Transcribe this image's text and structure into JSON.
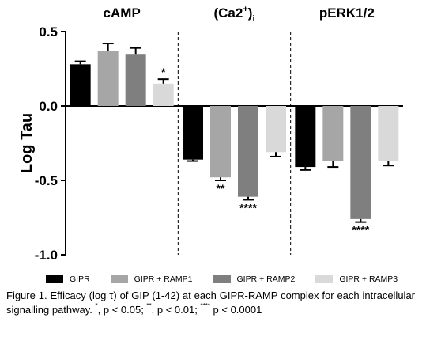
{
  "chart_data": {
    "type": "bar",
    "panels": [
      "cAMP",
      "(Ca2+)i",
      "pERK1/2"
    ],
    "series": [
      {
        "name": "GIPR",
        "color": "#000000",
        "values": [
          0.28,
          -0.36,
          -0.41
        ],
        "errors": [
          0.02,
          0.01,
          0.02
        ],
        "significance": [
          "",
          "",
          ""
        ]
      },
      {
        "name": "GIPR + RAMP1",
        "color": "#a6a6a6",
        "values": [
          0.37,
          -0.48,
          -0.37
        ],
        "errors": [
          0.05,
          0.02,
          0.04
        ],
        "significance": [
          "",
          "**",
          ""
        ]
      },
      {
        "name": "GIPR + RAMP2",
        "color": "#7f7f7f",
        "values": [
          0.35,
          -0.61,
          -0.76
        ],
        "errors": [
          0.04,
          0.02,
          0.02
        ],
        "significance": [
          "",
          "****",
          "****"
        ]
      },
      {
        "name": "GIPR + RAMP3",
        "color": "#d9d9d9",
        "values": [
          0.15,
          -0.31,
          -0.37
        ],
        "errors": [
          0.03,
          0.03,
          0.03
        ],
        "significance": [
          "*",
          "",
          ""
        ]
      }
    ],
    "ylabel": "Log Tau",
    "ylim": [
      -1.0,
      0.5
    ],
    "yticks": [
      "0.5",
      "0.0",
      "-0.5",
      "-1.0"
    ],
    "panel_separators": "dashed"
  },
  "caption": {
    "lead": "Figure 1. Efficacy (log τ) of GIP (1-42) at each GIPR-RAMP complex for each intracellular signalling pathway. ",
    "s1_sym": "*",
    "s1_text": ", p < 0.05; ",
    "s2_sym": "**",
    "s2_text": ", p < 0.01; ",
    "s3_sym": "****",
    "s3_text": " p < 0.0001"
  }
}
